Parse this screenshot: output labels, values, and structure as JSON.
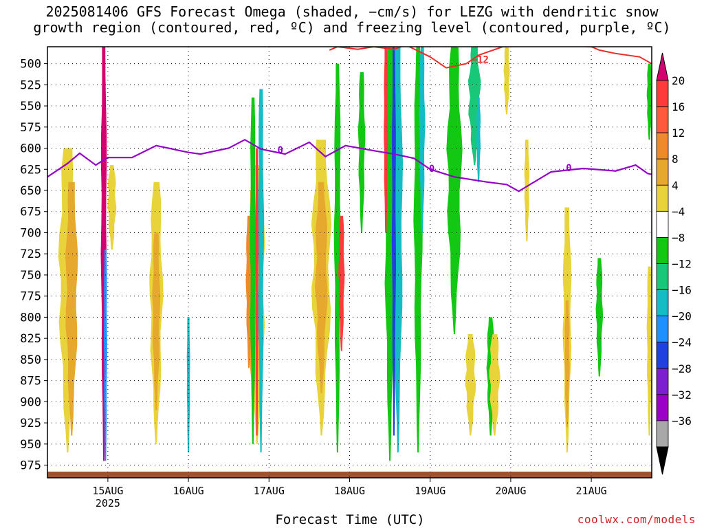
{
  "title": {
    "line1": "2025081406 GFS Forecast Omega (shaded, −cm/s) for LEZG with dendritic snow",
    "line2": "growth region (contoured, red, ºC) and freezing level (contoured, purple, ºC)"
  },
  "xlabel": "Forecast Time (UTC)",
  "credit": "coolwx.com/models",
  "chart_data": {
    "type": "heatmap",
    "title": "2025081406 GFS Forecast Omega (shaded, −cm/s) for LEZG with dendritic snow growth region (contoured, red, ºC) and freezing level (contoured, purple, ºC)",
    "xlabel": "Forecast Time (UTC)",
    "ylabel": "",
    "y_axis": {
      "unit": "hPa",
      "inverted": true,
      "range": [
        480,
        990
      ],
      "ticks": [
        500,
        525,
        550,
        575,
        600,
        625,
        650,
        675,
        700,
        725,
        750,
        775,
        800,
        825,
        850,
        875,
        900,
        925,
        950,
        975
      ]
    },
    "x_axis": {
      "unit": "day",
      "range_days": [
        14.25,
        21.75
      ],
      "ticks": [
        {
          "day": 15,
          "label": "15AUG",
          "sub": "2025"
        },
        {
          "day": 16,
          "label": "16AUG",
          "sub": ""
        },
        {
          "day": 17,
          "label": "17AUG",
          "sub": ""
        },
        {
          "day": 18,
          "label": "18AUG",
          "sub": ""
        },
        {
          "day": 19,
          "label": "19AUG",
          "sub": ""
        },
        {
          "day": 20,
          "label": "20AUG",
          "sub": ""
        },
        {
          "day": 21,
          "label": "21AUG",
          "sub": ""
        }
      ]
    },
    "grid": true,
    "colorbar": {
      "labels": [
        "20",
        "16",
        "12",
        "8",
        "4",
        "−4",
        "−8",
        "−12",
        "−16",
        "−20",
        "−24",
        "−28",
        "−32",
        "−36"
      ],
      "colors_top_to_bottom": [
        "#d3006f",
        "#ff3a3a",
        "#ff5a3c",
        "#ee8a2a",
        "#e6a82d",
        "#e8d43a",
        "#ffffff",
        "#12c812",
        "#18c878",
        "#14bcc4",
        "#1e90ff",
        "#2040e0",
        "#7b1fd0",
        "#9a00c8",
        "#a8a8a8",
        "#000000"
      ]
    },
    "omega_blobs": [
      {
        "day": 14.5,
        "p_top": 600,
        "p_bot": 960,
        "w": 0.18,
        "c": "#e8d43a"
      },
      {
        "day": 14.55,
        "p_top": 640,
        "p_bot": 940,
        "w": 0.12,
        "c": "#e6a82d"
      },
      {
        "day": 14.95,
        "p_top": 480,
        "p_bot": 970,
        "w": 0.05,
        "c": "#d3006f"
      },
      {
        "day": 15.05,
        "p_top": 620,
        "p_bot": 720,
        "w": 0.08,
        "c": "#e8d43a"
      },
      {
        "day": 14.97,
        "p_top": 720,
        "p_bot": 970,
        "w": 0.02,
        "c": "#1e90ff"
      },
      {
        "day": 15.6,
        "p_top": 640,
        "p_bot": 950,
        "w": 0.13,
        "c": "#e8d43a"
      },
      {
        "day": 15.6,
        "p_top": 700,
        "p_bot": 910,
        "w": 0.07,
        "c": "#e6a82d"
      },
      {
        "day": 16.0,
        "p_top": 800,
        "p_bot": 960,
        "w": 0.02,
        "c": "#14bcc4"
      },
      {
        "day": 16.85,
        "p_top": 620,
        "p_bot": 950,
        "w": 0.16,
        "c": "#e8d43a"
      },
      {
        "day": 16.8,
        "p_top": 650,
        "p_bot": 910,
        "w": 0.1,
        "c": "#e6a82d"
      },
      {
        "day": 16.75,
        "p_top": 680,
        "p_bot": 860,
        "w": 0.05,
        "c": "#ee8a2a"
      },
      {
        "day": 16.8,
        "p_top": 540,
        "p_bot": 950,
        "w": 0.05,
        "c": "#12c812"
      },
      {
        "day": 16.9,
        "p_top": 530,
        "p_bot": 960,
        "w": 0.05,
        "c": "#14bcc4"
      },
      {
        "day": 16.85,
        "p_top": 600,
        "p_bot": 940,
        "w": 0.02,
        "c": "#ff3a3a"
      },
      {
        "day": 17.65,
        "p_top": 590,
        "p_bot": 940,
        "w": 0.2,
        "c": "#e8d43a"
      },
      {
        "day": 17.65,
        "p_top": 640,
        "p_bot": 890,
        "w": 0.12,
        "c": "#e6a82d"
      },
      {
        "day": 17.85,
        "p_top": 500,
        "p_bot": 960,
        "w": 0.06,
        "c": "#12c812"
      },
      {
        "day": 17.9,
        "p_top": 680,
        "p_bot": 840,
        "w": 0.05,
        "c": "#ff3a3a"
      },
      {
        "day": 18.15,
        "p_top": 510,
        "p_bot": 700,
        "w": 0.06,
        "c": "#12c812"
      },
      {
        "day": 18.5,
        "p_top": 480,
        "p_bot": 970,
        "w": 0.1,
        "c": "#12c812"
      },
      {
        "day": 18.6,
        "p_top": 480,
        "p_bot": 960,
        "w": 0.09,
        "c": "#14bcc4"
      },
      {
        "day": 18.55,
        "p_top": 480,
        "p_bot": 940,
        "w": 0.03,
        "c": "#2040e0"
      },
      {
        "day": 18.45,
        "p_top": 480,
        "p_bot": 700,
        "w": 0.03,
        "c": "#ff3a3a"
      },
      {
        "day": 18.85,
        "p_top": 480,
        "p_bot": 960,
        "w": 0.08,
        "c": "#12c812"
      },
      {
        "day": 18.9,
        "p_top": 480,
        "p_bot": 700,
        "w": 0.05,
        "c": "#14bcc4"
      },
      {
        "day": 19.3,
        "p_top": 480,
        "p_bot": 820,
        "w": 0.15,
        "c": "#12c812"
      },
      {
        "day": 19.55,
        "p_top": 480,
        "p_bot": 620,
        "w": 0.12,
        "c": "#18c878"
      },
      {
        "day": 19.6,
        "p_top": 540,
        "p_bot": 640,
        "w": 0.03,
        "c": "#14bcc4"
      },
      {
        "day": 19.5,
        "p_top": 820,
        "p_bot": 940,
        "w": 0.1,
        "c": "#e8d43a"
      },
      {
        "day": 19.75,
        "p_top": 800,
        "p_bot": 940,
        "w": 0.07,
        "c": "#12c812"
      },
      {
        "day": 19.8,
        "p_top": 820,
        "p_bot": 940,
        "w": 0.1,
        "c": "#e8d43a"
      },
      {
        "day": 19.95,
        "p_top": 480,
        "p_bot": 560,
        "w": 0.05,
        "c": "#e8d43a"
      },
      {
        "day": 20.2,
        "p_top": 590,
        "p_bot": 710,
        "w": 0.04,
        "c": "#e8d43a"
      },
      {
        "day": 20.7,
        "p_top": 670,
        "p_bot": 960,
        "w": 0.08,
        "c": "#e8d43a"
      },
      {
        "day": 20.7,
        "p_top": 780,
        "p_bot": 930,
        "w": 0.04,
        "c": "#e6a82d"
      },
      {
        "day": 21.1,
        "p_top": 730,
        "p_bot": 870,
        "w": 0.06,
        "c": "#12c812"
      },
      {
        "day": 21.72,
        "p_top": 500,
        "p_bot": 590,
        "w": 0.04,
        "c": "#12c812"
      },
      {
        "day": 21.72,
        "p_top": 740,
        "p_bot": 940,
        "w": 0.04,
        "c": "#e8d43a"
      }
    ],
    "freezing_level": {
      "name": "0",
      "points": [
        [
          14.25,
          634
        ],
        [
          14.5,
          618
        ],
        [
          14.65,
          606
        ],
        [
          14.85,
          620
        ],
        [
          15.0,
          611
        ],
        [
          15.3,
          611
        ],
        [
          15.6,
          597
        ],
        [
          16.0,
          605
        ],
        [
          16.15,
          607
        ],
        [
          16.5,
          600
        ],
        [
          16.7,
          590
        ],
        [
          16.9,
          601
        ],
        [
          17.2,
          607
        ],
        [
          17.5,
          593
        ],
        [
          17.7,
          610
        ],
        [
          17.95,
          597
        ],
        [
          18.3,
          603
        ],
        [
          18.55,
          607
        ],
        [
          18.8,
          612
        ],
        [
          19.0,
          625
        ],
        [
          19.3,
          634
        ],
        [
          19.7,
          640
        ],
        [
          19.95,
          643
        ],
        [
          20.1,
          651
        ],
        [
          20.5,
          628
        ],
        [
          20.9,
          624
        ],
        [
          21.3,
          627
        ],
        [
          21.55,
          620
        ],
        [
          21.7,
          630
        ],
        [
          21.75,
          631
        ]
      ],
      "labels": [
        {
          "day": 17.14,
          "p": 602
        },
        {
          "day": 19.02,
          "p": 624
        },
        {
          "day": 20.72,
          "p": 623
        }
      ]
    },
    "dgz_contour": {
      "name": "−12",
      "points": [
        [
          17.75,
          484
        ],
        [
          17.85,
          480
        ],
        [
          18.1,
          483
        ],
        [
          18.3,
          480
        ],
        [
          18.55,
          483
        ],
        [
          18.7,
          478
        ],
        [
          19.0,
          492
        ],
        [
          19.2,
          505
        ],
        [
          19.45,
          500
        ],
        [
          19.6,
          490
        ],
        [
          19.9,
          480
        ],
        [
          20.6,
          478
        ],
        [
          21.0,
          480
        ],
        [
          21.1,
          484
        ],
        [
          21.3,
          488
        ],
        [
          21.6,
          492
        ],
        [
          21.75,
          500
        ]
      ],
      "labels": [
        {
          "day": 19.62,
          "p": 495
        }
      ]
    }
  }
}
